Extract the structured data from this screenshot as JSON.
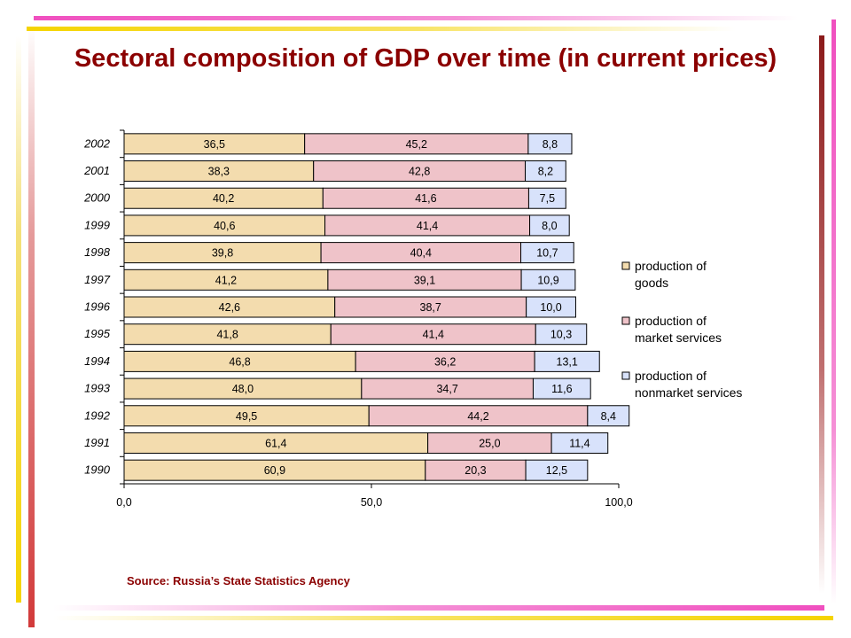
{
  "title": "Sectoral composition of GDP over time (in current prices)",
  "source": "Source: Russia’s State Statistics Agency",
  "colors": {
    "goods": "#f3dcae",
    "market_services": "#efc3c9",
    "nonmarket_services": "#d8e2fb",
    "title": "#8b0000"
  },
  "chart_data": {
    "type": "bar",
    "orientation": "horizontal",
    "stacked": true,
    "categories": [
      "2002",
      "2001",
      "2000",
      "1999",
      "1998",
      "1997",
      "1996",
      "1995",
      "1994",
      "1993",
      "1992",
      "1991",
      "1990"
    ],
    "series": [
      {
        "name": "production of goods",
        "values": [
          36.5,
          38.3,
          40.2,
          40.6,
          39.8,
          41.2,
          42.6,
          41.8,
          46.8,
          48.0,
          49.5,
          61.4,
          60.9
        ],
        "labels": [
          "36,5",
          "38,3",
          "40,2",
          "40,6",
          "39,8",
          "41,2",
          "42,6",
          "41,8",
          "46,8",
          "48,0",
          "49,5",
          "61,4",
          "60,9"
        ]
      },
      {
        "name": "production of market services",
        "values": [
          45.2,
          42.8,
          41.6,
          41.4,
          40.4,
          39.1,
          38.7,
          41.4,
          36.2,
          34.7,
          44.2,
          25.0,
          20.3
        ],
        "labels": [
          "45,2",
          "42,8",
          "41,6",
          "41,4",
          "40,4",
          "39,1",
          "38,7",
          "41,4",
          "36,2",
          "34,7",
          "44,2",
          "25,0",
          "20,3"
        ]
      },
      {
        "name": "production of nonmarket services",
        "values": [
          8.8,
          8.2,
          7.5,
          8.0,
          10.7,
          10.9,
          10.0,
          10.3,
          13.1,
          11.6,
          8.4,
          11.4,
          12.5
        ],
        "labels": [
          "8,8",
          "8,2",
          "7,5",
          "8,0",
          "10,7",
          "10,9",
          "10,0",
          "10,3",
          "13,1",
          "11,6",
          "8,4",
          "11,4",
          "12,5"
        ]
      }
    ],
    "xlim": [
      0,
      100
    ],
    "xticks": [
      0,
      50,
      100
    ],
    "xtick_labels": [
      "0,0",
      "50,0",
      "100,0"
    ],
    "legend": [
      "production of goods",
      "production of market services",
      "production of nonmarket services"
    ],
    "legend_lines": [
      [
        "production of",
        "goods"
      ],
      [
        "production of",
        "market services"
      ],
      [
        "production of",
        "nonmarket services"
      ]
    ],
    "legend_position": "right",
    "grid": false
  }
}
